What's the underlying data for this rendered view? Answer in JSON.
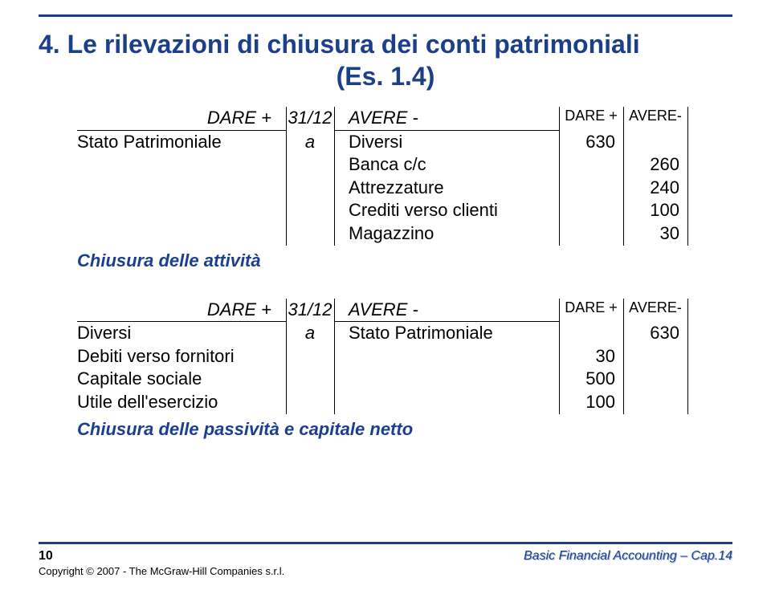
{
  "colors": {
    "rule": "#1b3f8b",
    "title": "#1b3f8b",
    "note": "#1b3f8b",
    "text": "#000000",
    "foot_right": "#1b3f8b",
    "foot_right_shadow": "#a9b8da"
  },
  "title_line1": "4. Le rilevazioni di chiusura dei conti patrimoniali",
  "title_line2": "(Es. 1.4)",
  "journal1": {
    "header": {
      "dare": "DARE +",
      "date": "31/12",
      "avere": "AVERE -",
      "d2": "DARE +",
      "a2": "AVERE-"
    },
    "rows": [
      {
        "left": "Stato Patrimoniale",
        "mid": "a",
        "right": "Diversi",
        "d": "630",
        "a": ""
      },
      {
        "left": "",
        "mid": "",
        "right": "Banca c/c",
        "d": "",
        "a": "260"
      },
      {
        "left": "",
        "mid": "",
        "right": "Attrezzature",
        "d": "",
        "a": "240"
      },
      {
        "left": "",
        "mid": "",
        "right": "Crediti verso clienti",
        "d": "",
        "a": "100"
      },
      {
        "left": "",
        "mid": "",
        "right": "Magazzino",
        "d": "",
        "a": "30"
      }
    ],
    "note": "Chiusura delle attività"
  },
  "journal2": {
    "header": {
      "dare": "DARE +",
      "date": "31/12",
      "avere": "AVERE -",
      "d2": "DARE +",
      "a2": "AVERE-"
    },
    "rows": [
      {
        "left": "Diversi",
        "mid": "a",
        "right": "Stato Patrimoniale",
        "d": "",
        "a": "630"
      },
      {
        "left": "Debiti verso fornitori",
        "mid": "",
        "right": "",
        "d": "30",
        "a": ""
      },
      {
        "left": "Capitale sociale",
        "mid": "",
        "right": "",
        "d": "500",
        "a": ""
      },
      {
        "left": "Utile dell'esercizio",
        "mid": "",
        "right": "",
        "d": "100",
        "a": ""
      }
    ],
    "note": "Chiusura delle passività e capitale netto"
  },
  "footer": {
    "page": "10",
    "right": "Basic Financial Accounting – Cap.14",
    "copyright": "Copyright © 2007 - The McGraw-Hill Companies s.r.l."
  }
}
